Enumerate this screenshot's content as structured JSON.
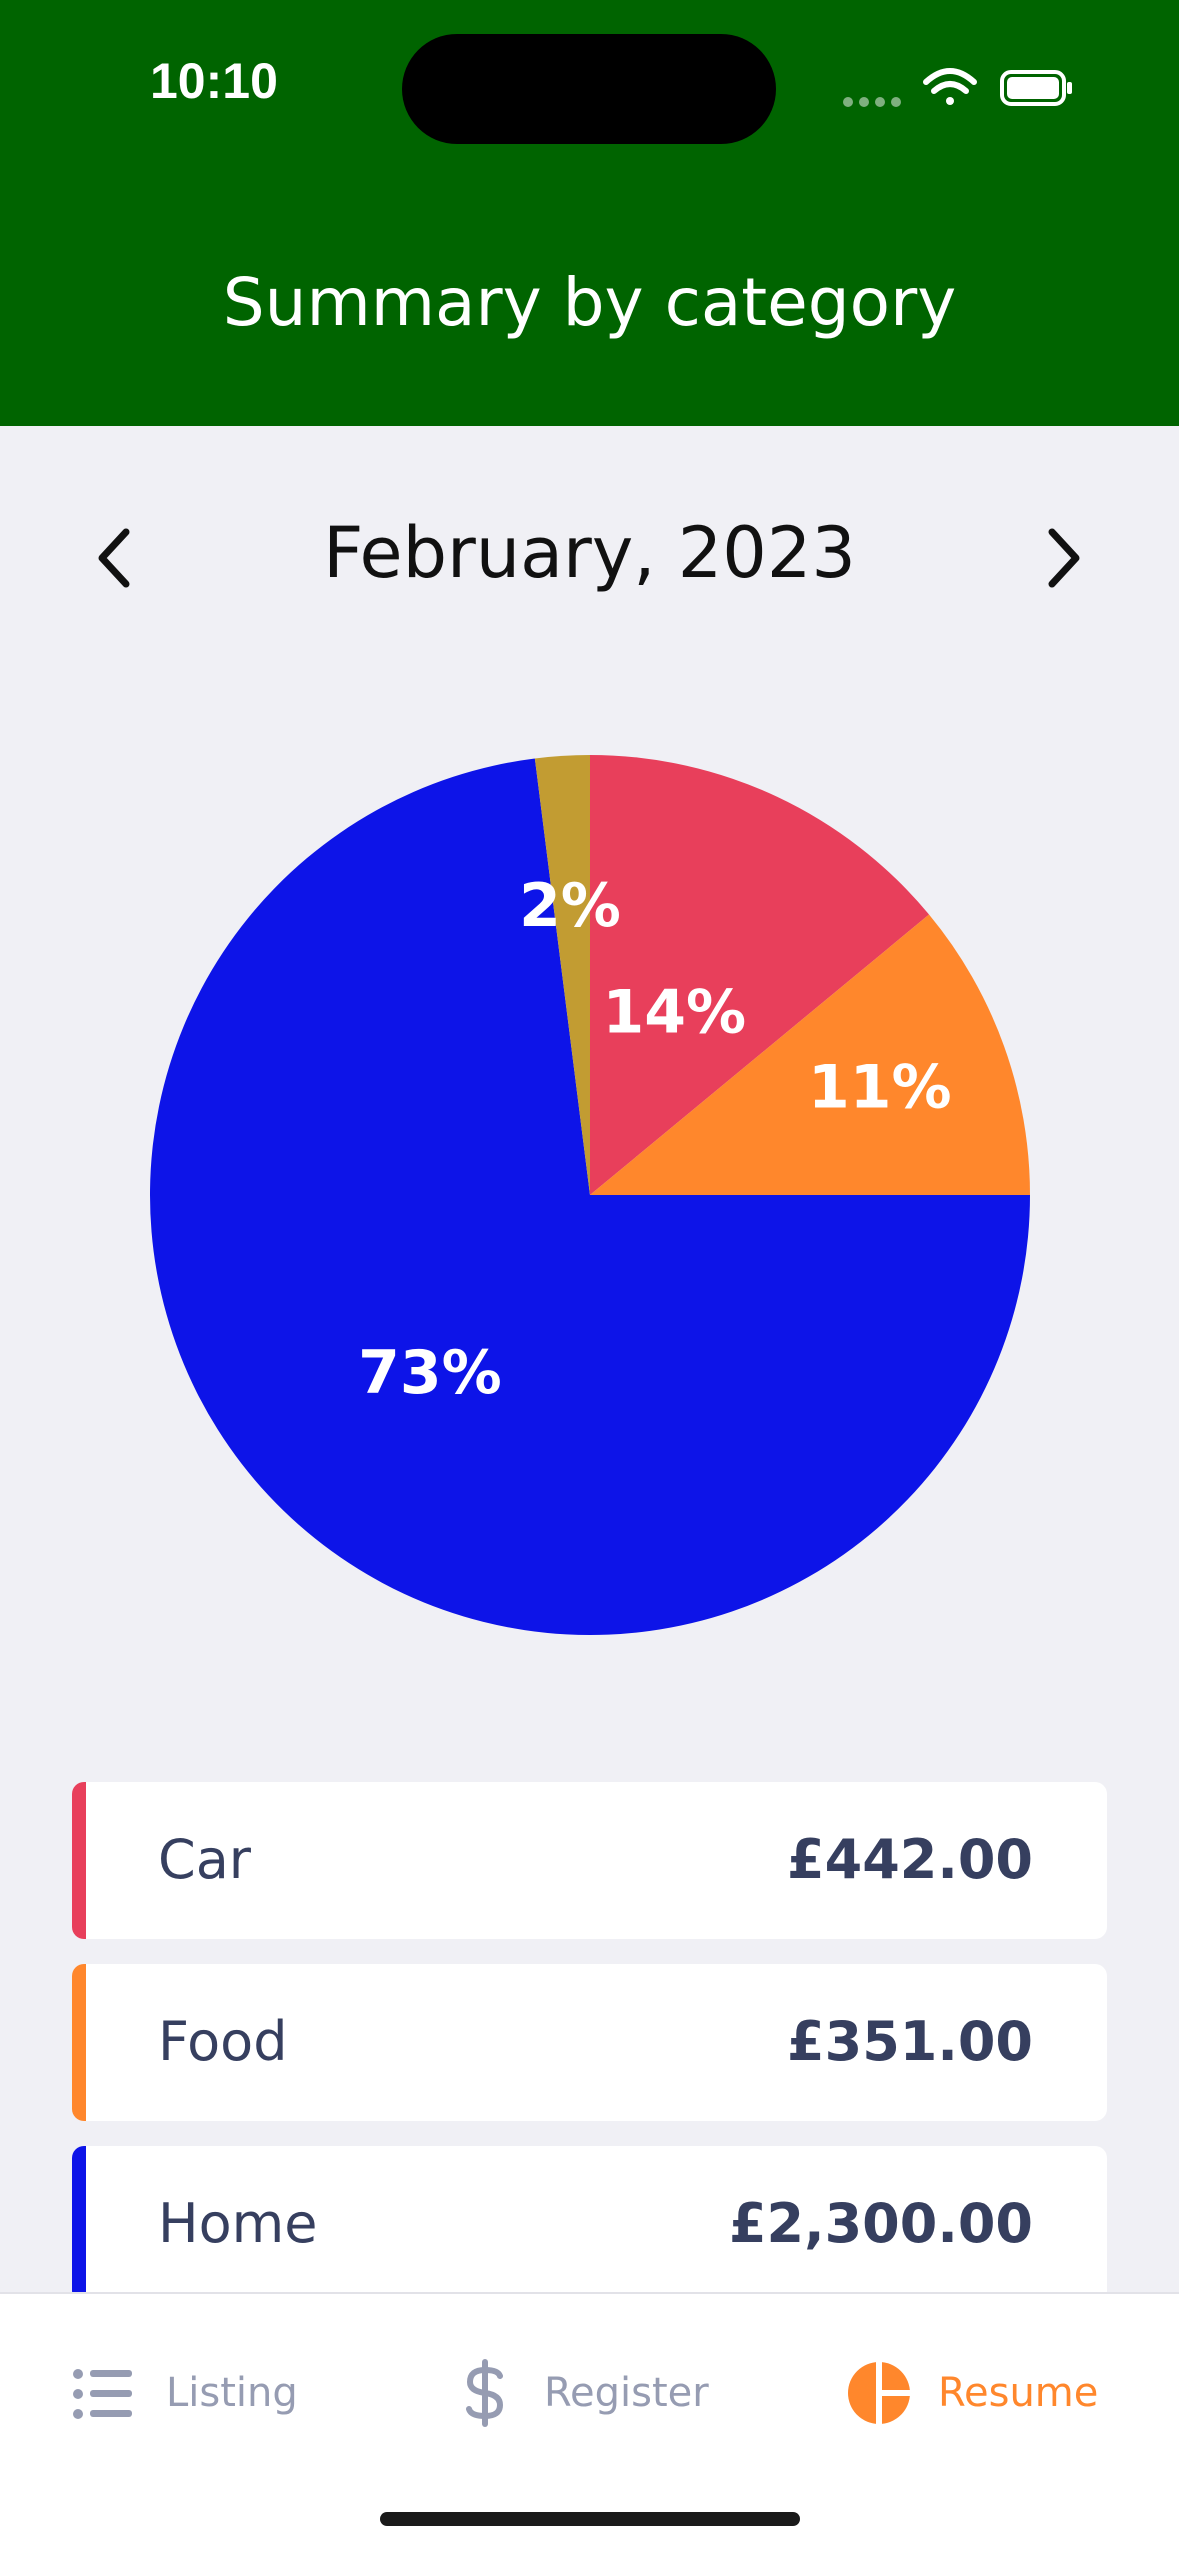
{
  "status_bar": {
    "time": "10:10"
  },
  "header": {
    "title": "Summary by category"
  },
  "month_nav": {
    "prev_icon": "chevron-left-icon",
    "next_icon": "chevron-right-icon",
    "label": "February, 2023"
  },
  "chart_data": {
    "type": "pie",
    "slices": [
      {
        "label": "Car",
        "percent": 14,
        "display": "14%",
        "color": "#E83F5B"
      },
      {
        "label": "Food",
        "percent": 11,
        "display": "11%",
        "color": "#FF872C"
      },
      {
        "label": "Home",
        "percent": 73,
        "display": "73%",
        "color": "#0D14E8"
      },
      {
        "label": "",
        "percent": 2,
        "display": "2%",
        "color": "#C29C32"
      }
    ]
  },
  "categories": [
    {
      "name": "Car",
      "amount": "£442.00",
      "color": "#E83F5B"
    },
    {
      "name": "Food",
      "amount": "£351.00",
      "color": "#FF872C"
    },
    {
      "name": "Home",
      "amount": "£2,300.00",
      "color": "#0D14E8"
    }
  ],
  "tabs": [
    {
      "label": "Listing",
      "icon": "list-icon",
      "active": false
    },
    {
      "label": "Register",
      "icon": "dollar-icon",
      "active": false
    },
    {
      "label": "Resume",
      "icon": "pie-chart-icon",
      "active": true
    }
  ],
  "colors": {
    "header": "#006400",
    "accent": "#FF872C",
    "inactive": "#969CB2",
    "text": "#363F5F"
  }
}
